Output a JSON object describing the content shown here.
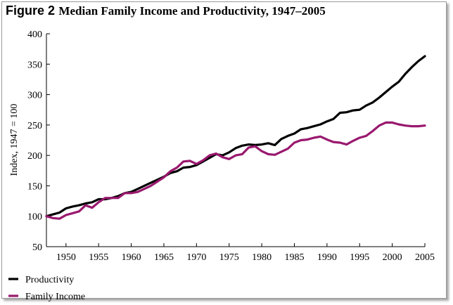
{
  "figure": {
    "label": "Figure 2",
    "title": "Median Family Income and Productivity, 1947–2005"
  },
  "chart_data": {
    "type": "line",
    "title": "Median Family Income and Productivity, 1947–2005",
    "xlabel": "",
    "ylabel": "Index, 1947 = 100",
    "xlim": [
      1947,
      2005
    ],
    "ylim": [
      50,
      400
    ],
    "x_ticks": [
      1950,
      1955,
      1960,
      1965,
      1970,
      1975,
      1980,
      1985,
      1990,
      1995,
      2000,
      2005
    ],
    "y_ticks": [
      50,
      100,
      150,
      200,
      250,
      300,
      350,
      400
    ],
    "grid": false,
    "legend_position": "bottom-left",
    "x": [
      1947,
      1948,
      1949,
      1950,
      1951,
      1952,
      1953,
      1954,
      1955,
      1956,
      1957,
      1958,
      1959,
      1960,
      1961,
      1962,
      1963,
      1964,
      1965,
      1966,
      1967,
      1968,
      1969,
      1970,
      1971,
      1972,
      1973,
      1974,
      1975,
      1976,
      1977,
      1978,
      1979,
      1980,
      1981,
      1982,
      1983,
      1984,
      1985,
      1986,
      1987,
      1988,
      1989,
      1990,
      1991,
      1992,
      1993,
      1994,
      1995,
      1996,
      1997,
      1998,
      1999,
      2000,
      2001,
      2002,
      2003,
      2004,
      2005
    ],
    "series": [
      {
        "name": "Productivity",
        "color": "#000000",
        "values": [
          100,
          103,
          106,
          113,
          116,
          118,
          121,
          123,
          128,
          128,
          130,
          133,
          138,
          140,
          145,
          150,
          155,
          160,
          165,
          171,
          174,
          180,
          181,
          184,
          190,
          196,
          202,
          200,
          205,
          212,
          216,
          218,
          217,
          218,
          220,
          217,
          227,
          232,
          236,
          243,
          245,
          248,
          251,
          256,
          260,
          270,
          271,
          274,
          275,
          282,
          287,
          295,
          304,
          313,
          321,
          334,
          345,
          355,
          363
        ]
      },
      {
        "name": "Family Income",
        "color": "#99186e",
        "values": [
          100,
          97,
          96,
          102,
          105,
          108,
          118,
          114,
          123,
          130,
          130,
          130,
          138,
          138,
          140,
          145,
          150,
          157,
          164,
          174,
          180,
          190,
          191,
          186,
          192,
          200,
          203,
          197,
          194,
          200,
          202,
          213,
          215,
          207,
          202,
          201,
          206,
          211,
          221,
          225,
          226,
          229,
          231,
          226,
          222,
          221,
          218,
          224,
          229,
          232,
          240,
          249,
          254,
          254,
          251,
          249,
          248,
          248,
          249
        ]
      }
    ]
  }
}
